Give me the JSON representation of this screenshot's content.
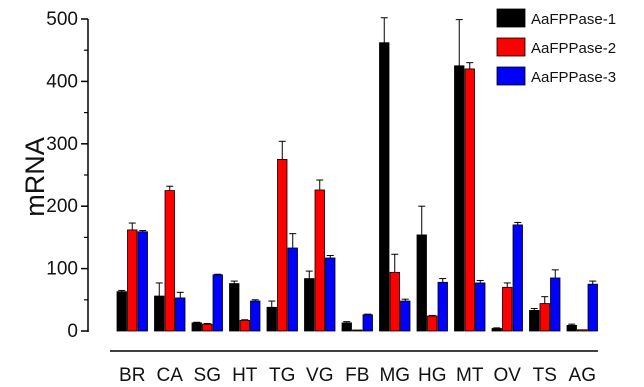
{
  "chart_data": {
    "type": "bar",
    "title": "",
    "xlabel": "",
    "ylabel": "mRNA",
    "ylim": [
      0,
      500
    ],
    "yticks": [
      0,
      100,
      200,
      300,
      400,
      500
    ],
    "grid": false,
    "legend_position": "top-right",
    "categories": [
      "BR",
      "CA",
      "SG",
      "HT",
      "TG",
      "VG",
      "FB",
      "MG",
      "HG",
      "MT",
      "OV",
      "TS",
      "AG"
    ],
    "series": [
      {
        "name": "AaFPPase-1",
        "color": "#000000",
        "values": [
          63,
          56,
          13,
          76,
          38,
          84,
          13,
          462,
          154,
          425,
          4,
          33,
          9
        ],
        "errors": [
          2,
          21,
          1,
          4,
          10,
          12,
          2,
          40,
          46,
          74,
          1,
          3,
          2
        ]
      },
      {
        "name": "AaFPPase-2",
        "color": "#ff0000",
        "values": [
          162,
          225,
          11,
          17,
          275,
          226,
          0,
          94,
          24,
          420,
          70,
          44,
          2
        ],
        "errors": [
          11,
          7,
          1,
          1,
          29,
          16,
          0,
          29,
          1,
          10,
          7,
          11,
          0
        ]
      },
      {
        "name": "AaFPPase-3",
        "color": "#0000ff",
        "values": [
          159,
          53,
          90,
          48,
          133,
          117,
          26,
          48,
          78,
          77,
          170,
          85,
          75
        ],
        "errors": [
          2,
          9,
          1,
          2,
          23,
          4,
          1,
          3,
          6,
          4,
          4,
          13,
          5
        ]
      }
    ]
  }
}
